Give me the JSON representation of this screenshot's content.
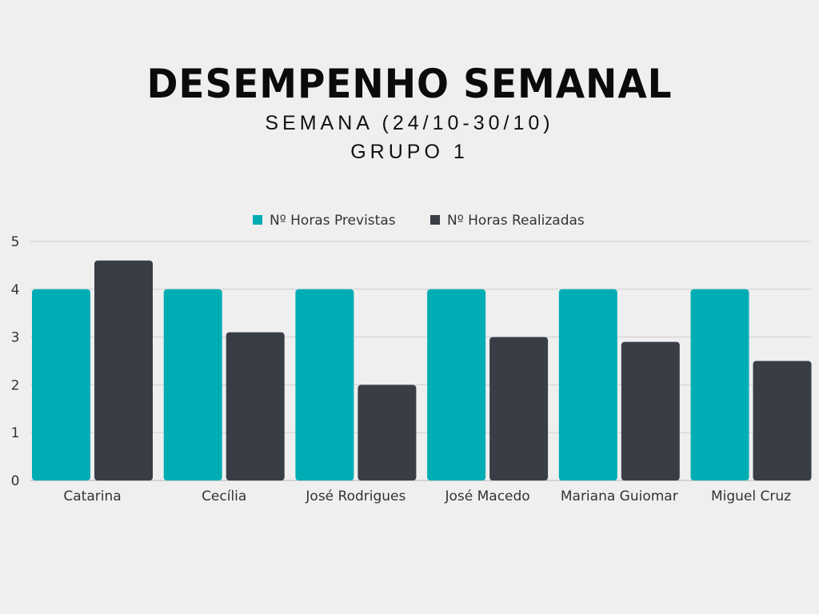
{
  "header": {
    "title": "DESEMPENHO SEMANAL",
    "subtitle": "SEMANA (24/10-30/10)",
    "group": "GRUPO 1"
  },
  "colors": {
    "background": "#efefef",
    "previstas": "#00adb5",
    "realizadas": "#393e46",
    "grid": "#cfcfcf"
  },
  "chart_data": {
    "type": "bar",
    "title": "",
    "xlabel": "",
    "ylabel": "",
    "ylim": [
      0,
      5
    ],
    "yticks": [
      0,
      1,
      2,
      3,
      4,
      5
    ],
    "grid": true,
    "legend": "top-center",
    "categories": [
      "Catarina",
      "Cecília",
      "José Rodrigues",
      "José Macedo",
      "Mariana Guiomar",
      "Miguel Cruz"
    ],
    "series": [
      {
        "name": "Nº Horas Previstas",
        "color": "#00adb5",
        "values": [
          4,
          4,
          4,
          4,
          4,
          4
        ]
      },
      {
        "name": "Nº Horas Realizadas",
        "color": "#393e46",
        "values": [
          4.6,
          3.1,
          2.0,
          3.0,
          2.9,
          2.5
        ]
      }
    ]
  }
}
